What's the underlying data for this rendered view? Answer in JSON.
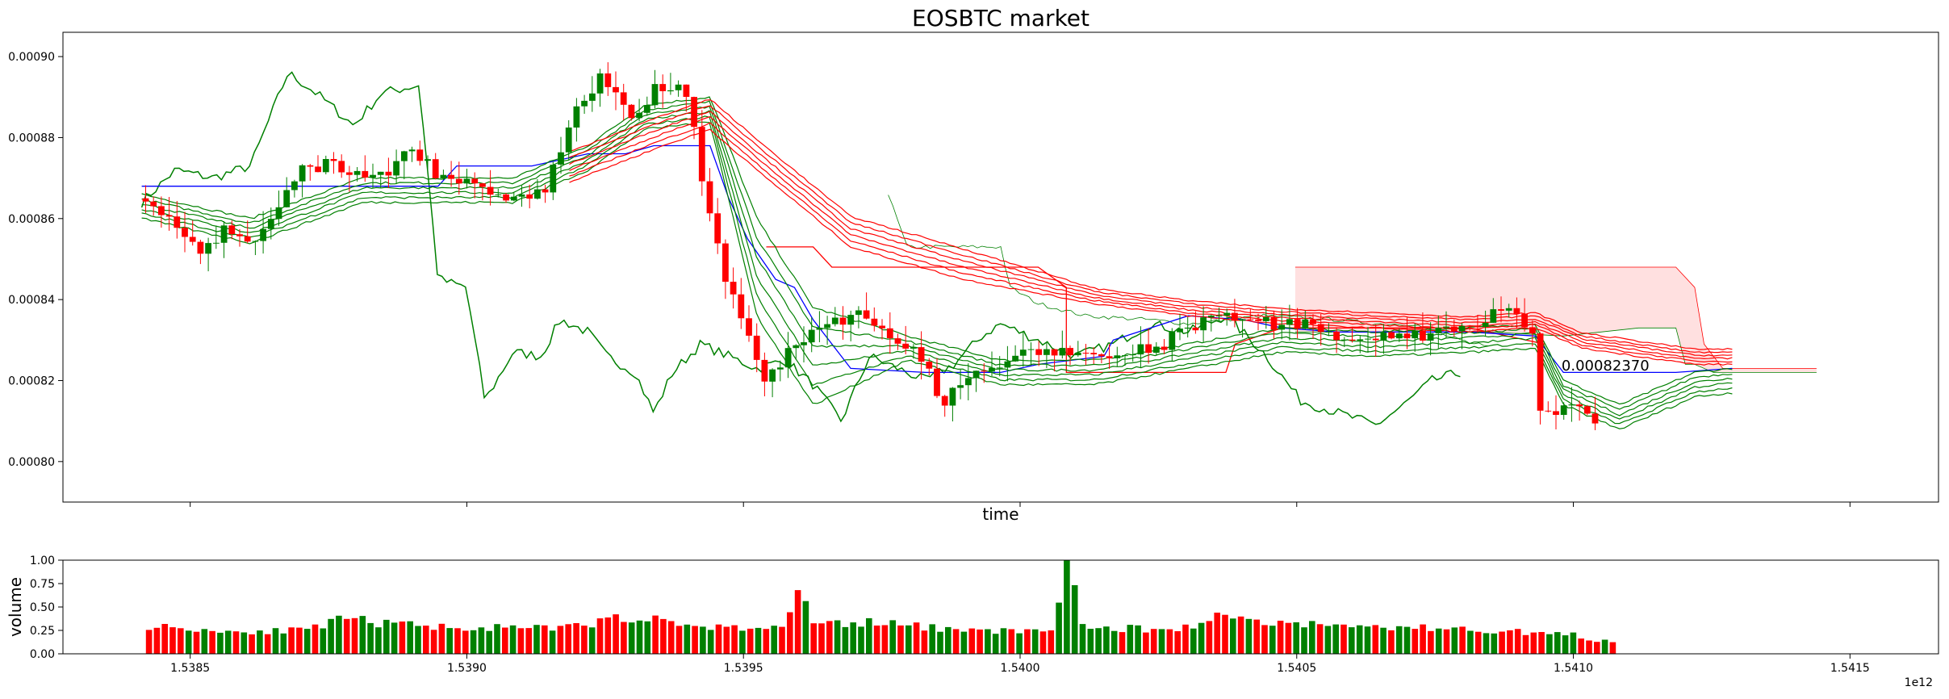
{
  "chart_data": [
    {
      "type": "candlestick",
      "title": "EOSBTC market",
      "xlabel": "time",
      "ylabel": "",
      "ylim": [
        0.00079,
        0.000906
      ],
      "yticks": [
        0.0008,
        0.00082,
        0.00084,
        0.00086,
        0.00088,
        0.0009
      ],
      "ytick_labels": [
        "0.00080",
        "0.00082",
        "0.00084",
        "0.00086",
        "0.00088",
        "0.00090"
      ],
      "last_price_label": "0.00082370",
      "last_price": 0.0008237,
      "x_span": [
        0,
        1
      ],
      "candles_anchor": [
        0.042,
        0.819
      ],
      "close_anchors": [
        [
          0.042,
          0.000865
        ],
        [
          0.06,
          0.00086
        ],
        [
          0.075,
          0.00085
        ],
        [
          0.09,
          0.000858
        ],
        [
          0.1,
          0.000853
        ],
        [
          0.115,
          0.000862
        ],
        [
          0.13,
          0.000872
        ],
        [
          0.145,
          0.000874
        ],
        [
          0.16,
          0.00087
        ],
        [
          0.175,
          0.000872
        ],
        [
          0.19,
          0.000877
        ],
        [
          0.205,
          0.000869
        ],
        [
          0.22,
          0.00087
        ],
        [
          0.24,
          0.000865
        ],
        [
          0.26,
          0.000868
        ],
        [
          0.275,
          0.000888
        ],
        [
          0.29,
          0.000895
        ],
        [
          0.305,
          0.000885
        ],
        [
          0.32,
          0.000893
        ],
        [
          0.335,
          0.000891
        ],
        [
          0.345,
          0.000865
        ],
        [
          0.355,
          0.000845
        ],
        [
          0.365,
          0.000835
        ],
        [
          0.375,
          0.00082
        ],
        [
          0.385,
          0.000825
        ],
        [
          0.4,
          0.000832
        ],
        [
          0.415,
          0.000835
        ],
        [
          0.43,
          0.000837
        ],
        [
          0.445,
          0.000829
        ],
        [
          0.46,
          0.000826
        ],
        [
          0.47,
          0.000814
        ],
        [
          0.48,
          0.000819
        ],
        [
          0.495,
          0.000824
        ],
        [
          0.515,
          0.000826
        ],
        [
          0.535,
          0.000827
        ],
        [
          0.56,
          0.000826
        ],
        [
          0.585,
          0.000828
        ],
        [
          0.6,
          0.000832
        ],
        [
          0.615,
          0.000837
        ],
        [
          0.63,
          0.000835
        ],
        [
          0.645,
          0.000834
        ],
        [
          0.66,
          0.000834
        ],
        [
          0.675,
          0.000832
        ],
        [
          0.69,
          0.000831
        ],
        [
          0.71,
          0.00083
        ],
        [
          0.73,
          0.000831
        ],
        [
          0.75,
          0.000833
        ],
        [
          0.765,
          0.000836
        ],
        [
          0.775,
          0.000837
        ],
        [
          0.785,
          0.000833
        ],
        [
          0.79,
          0.000812
        ],
        [
          0.8,
          0.000813
        ],
        [
          0.81,
          0.000812
        ],
        [
          0.82,
          0.000811
        ],
        [
          0.83,
          0.000812
        ],
        [
          0.84,
          0.000817
        ],
        [
          0.85,
          0.000822
        ],
        [
          0.86,
          0.000824
        ],
        [
          0.87,
          0.000824
        ],
        [
          0.88,
          0.000823
        ],
        [
          0.89,
          0.000823
        ],
        [
          0.9,
          0.000823
        ],
        [
          0.92,
          0.000823
        ],
        [
          0.96,
          0.000822
        ],
        [
          0.99,
          0.000823
        ]
      ],
      "ema_bundle_green_anchors": [
        [
          0.042,
          0.000866
        ],
        [
          0.1,
          0.00086
        ],
        [
          0.16,
          0.00087
        ],
        [
          0.24,
          0.00087
        ],
        [
          0.28,
          0.000878
        ],
        [
          0.31,
          0.000888
        ],
        [
          0.345,
          0.00089
        ],
        [
          0.37,
          0.00086
        ],
        [
          0.4,
          0.000838
        ],
        [
          0.45,
          0.000831
        ],
        [
          0.5,
          0.000825
        ],
        [
          0.55,
          0.000825
        ],
        [
          0.6,
          0.000829
        ],
        [
          0.65,
          0.000833
        ],
        [
          0.7,
          0.000832
        ],
        [
          0.75,
          0.000833
        ],
        [
          0.785,
          0.000834
        ],
        [
          0.8,
          0.00082
        ],
        [
          0.83,
          0.000814
        ],
        [
          0.85,
          0.000818
        ],
        [
          0.87,
          0.000822
        ],
        [
          0.89,
          0.000823
        ]
      ],
      "ema_bundle_red_anchors": [
        [
          0.27,
          0.000869
        ],
        [
          0.32,
          0.000878
        ],
        [
          0.345,
          0.000882
        ],
        [
          0.37,
          0.000872
        ],
        [
          0.42,
          0.000853
        ],
        [
          0.48,
          0.000845
        ],
        [
          0.55,
          0.000839
        ],
        [
          0.6,
          0.000836
        ],
        [
          0.65,
          0.000834
        ],
        [
          0.7,
          0.000833
        ],
        [
          0.75,
          0.000832
        ],
        [
          0.785,
          0.000833
        ],
        [
          0.81,
          0.000828
        ],
        [
          0.84,
          0.000826
        ],
        [
          0.87,
          0.000824
        ],
        [
          0.89,
          0.000824
        ]
      ],
      "channel_green_anchors": [
        [
          0.042,
          0.000864
        ],
        [
          0.06,
          0.000872
        ],
        [
          0.08,
          0.00087
        ],
        [
          0.1,
          0.000873
        ],
        [
          0.12,
          0.000896
        ],
        [
          0.135,
          0.000891
        ],
        [
          0.155,
          0.000883
        ],
        [
          0.17,
          0.000891
        ],
        [
          0.19,
          0.000893
        ],
        [
          0.2,
          0.000845
        ],
        [
          0.215,
          0.000843
        ],
        [
          0.225,
          0.000815
        ],
        [
          0.24,
          0.000827
        ],
        [
          0.255,
          0.000826
        ],
        [
          0.265,
          0.000835
        ],
        [
          0.28,
          0.000832
        ],
        [
          0.29,
          0.000826
        ],
        [
          0.305,
          0.000822
        ],
        [
          0.315,
          0.000812
        ],
        [
          0.325,
          0.000822
        ],
        [
          0.34,
          0.000829
        ],
        [
          0.355,
          0.000826
        ],
        [
          0.37,
          0.000823
        ],
        [
          0.385,
          0.000825
        ],
        [
          0.4,
          0.000819
        ],
        [
          0.415,
          0.00081
        ],
        [
          0.43,
          0.000826
        ],
        [
          0.445,
          0.000823
        ],
        [
          0.46,
          0.00082
        ],
        [
          0.475,
          0.000824
        ],
        [
          0.49,
          0.000831
        ],
        [
          0.5,
          0.000834
        ],
        [
          0.52,
          0.00083
        ],
        [
          0.54,
          0.000826
        ],
        [
          0.56,
          0.000829
        ],
        [
          0.58,
          0.000834
        ],
        [
          0.6,
          0.000832
        ],
        [
          0.62,
          0.000836
        ],
        [
          0.64,
          0.000827
        ],
        [
          0.66,
          0.000815
        ],
        [
          0.68,
          0.000812
        ],
        [
          0.7,
          0.000809
        ],
        [
          0.715,
          0.000814
        ],
        [
          0.73,
          0.00082
        ],
        [
          0.745,
          0.000822
        ]
      ],
      "channel_green_upper_late_anchors": [
        [
          0.44,
          0.000866
        ],
        [
          0.45,
          0.000853
        ],
        [
          0.48,
          0.000853
        ],
        [
          0.5,
          0.000853
        ],
        [
          0.505,
          0.000843
        ],
        [
          0.52,
          0.000839
        ],
        [
          0.545,
          0.000836
        ],
        [
          0.58,
          0.000835
        ],
        [
          0.6,
          0.000834
        ],
        [
          0.64,
          0.000836
        ],
        [
          0.68,
          0.000835
        ],
        [
          0.7,
          0.000834
        ],
        [
          0.72,
          0.000834
        ],
        [
          0.75,
          0.000829
        ],
        [
          0.76,
          0.000829
        ]
      ],
      "blue_line_anchors": [
        [
          0.042,
          0.000868
        ],
        [
          0.2,
          0.000868
        ],
        [
          0.21,
          0.000873
        ],
        [
          0.25,
          0.000873
        ],
        [
          0.28,
          0.000876
        ],
        [
          0.3,
          0.000876
        ],
        [
          0.315,
          0.000878
        ],
        [
          0.345,
          0.000878
        ],
        [
          0.355,
          0.000865
        ],
        [
          0.365,
          0.000855
        ],
        [
          0.38,
          0.000845
        ],
        [
          0.39,
          0.000843
        ],
        [
          0.4,
          0.000835
        ],
        [
          0.42,
          0.000823
        ],
        [
          0.46,
          0.000822
        ],
        [
          0.5,
          0.000822
        ],
        [
          0.52,
          0.000824
        ],
        [
          0.555,
          0.000826
        ],
        [
          0.56,
          0.00083
        ],
        [
          0.6,
          0.000836
        ],
        [
          0.63,
          0.000835
        ],
        [
          0.65,
          0.000833
        ],
        [
          0.68,
          0.000832
        ],
        [
          0.75,
          0.000832
        ],
        [
          0.785,
          0.000831
        ],
        [
          0.8,
          0.000822
        ],
        [
          0.84,
          0.000822
        ],
        [
          0.86,
          0.000822
        ],
        [
          0.89,
          0.000823
        ]
      ],
      "red_step_anchors": [
        [
          0.375,
          0.000853
        ],
        [
          0.4,
          0.000853
        ],
        [
          0.41,
          0.000848
        ],
        [
          0.52,
          0.000848
        ],
        [
          0.535,
          0.000843
        ],
        [
          0.535,
          0.000822
        ],
        [
          0.62,
          0.000822
        ],
        [
          0.625,
          0.000829
        ],
        [
          0.65,
          0.000833
        ],
        [
          0.7,
          0.000833
        ],
        [
          0.75,
          0.000833
        ],
        [
          0.79,
          0.000829
        ]
      ],
      "cloud_upper_anchors": [
        [
          0.657,
          0.000848
        ],
        [
          0.76,
          0.000848
        ],
        [
          0.86,
          0.000848
        ],
        [
          0.87,
          0.000843
        ],
        [
          0.875,
          0.000829
        ],
        [
          0.885,
          0.000823
        ],
        [
          0.935,
          0.000823
        ]
      ],
      "cloud_lower_anchors": [
        [
          0.657,
          0.000832
        ],
        [
          0.76,
          0.000832
        ],
        [
          0.8,
          0.000831
        ],
        [
          0.84,
          0.000833
        ],
        [
          0.86,
          0.000833
        ],
        [
          0.865,
          0.000824
        ],
        [
          0.87,
          0.000824
        ],
        [
          0.88,
          0.000822
        ],
        [
          0.935,
          0.000822
        ]
      ],
      "cloud_color": "#ffd6d6"
    },
    {
      "type": "bar",
      "ylabel": "volume",
      "ylim": [
        0,
        1
      ],
      "yticks": [
        0,
        0.25,
        0.5,
        0.75,
        1
      ],
      "ytick_labels": [
        "0.00",
        "0.25",
        "0.50",
        "0.75",
        "1.00"
      ],
      "xticks": [
        1.5385,
        1.539,
        1.5395,
        1.54,
        1.5405,
        1.541,
        1.5415
      ],
      "xtick_labels": [
        "1.5385",
        "1.5390",
        "1.5395",
        "1.5400",
        "1.5405",
        "1.5410",
        "1.5415"
      ],
      "x_offset_label": "1e12",
      "xlim": [
        1.53827,
        1.54166
      ],
      "bar_x_start": 1.53842,
      "bar_x_end": 1.54108,
      "bar_count": 186,
      "volume_anchors": [
        [
          0,
          0.3
        ],
        [
          10,
          0.24
        ],
        [
          20,
          0.25
        ],
        [
          25,
          0.38
        ],
        [
          30,
          0.32
        ],
        [
          40,
          0.28
        ],
        [
          50,
          0.27
        ],
        [
          55,
          0.3
        ],
        [
          60,
          0.4
        ],
        [
          70,
          0.29
        ],
        [
          80,
          0.27
        ],
        [
          82,
          0.68
        ],
        [
          84,
          0.32
        ],
        [
          90,
          0.34
        ],
        [
          100,
          0.27
        ],
        [
          110,
          0.24
        ],
        [
          114,
          0.25
        ],
        [
          116,
          1.0
        ],
        [
          118,
          0.28
        ],
        [
          130,
          0.26
        ],
        [
          136,
          0.42
        ],
        [
          140,
          0.35
        ],
        [
          150,
          0.3
        ],
        [
          160,
          0.28
        ],
        [
          170,
          0.25
        ],
        [
          180,
          0.2
        ],
        [
          186,
          0.1
        ]
      ],
      "green_color": "#008000",
      "red_color": "#ff0000"
    }
  ],
  "colors": {
    "up": "#008000",
    "down": "#ff0000",
    "blue": "#0000ff",
    "axis": "#000000"
  }
}
